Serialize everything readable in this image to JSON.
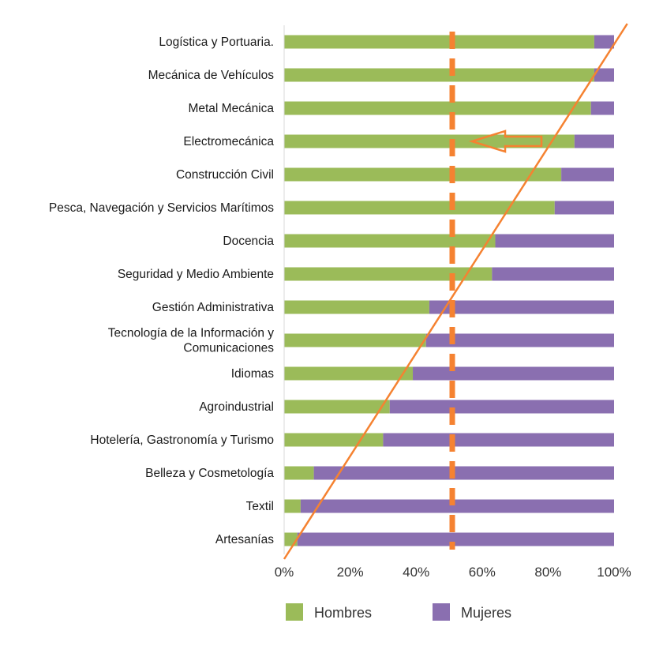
{
  "chart_data": {
    "type": "bar",
    "stacked": true,
    "orientation": "horizontal",
    "percent_scale": true,
    "categories": [
      "Logística y Portuaria.",
      "Mecánica de Vehículos",
      "Metal Mecánica",
      "Electromecánica",
      "Construcción Civil",
      "Pesca, Navegación y Servicios Marítimos",
      "Docencia",
      "Seguridad  y Medio Ambiente",
      "Gestión Administrativa",
      [
        "Tecnología de la Información y",
        "Comunicaciones"
      ],
      "Idiomas",
      "Agroindustrial",
      "Hotelería, Gastronomía y Turismo",
      "Belleza y Cosmetología",
      "Textil",
      "Artesanías"
    ],
    "series": [
      {
        "name": "Hombres",
        "color": "#9bbb59",
        "values": [
          94,
          94,
          93,
          88,
          84,
          82,
          64,
          63,
          44,
          43,
          39,
          32,
          30,
          9,
          5,
          4
        ]
      },
      {
        "name": "Mujeres",
        "color": "#8a6fb0",
        "values": [
          6,
          6,
          7,
          12,
          16,
          18,
          36,
          37,
          56,
          57,
          61,
          68,
          70,
          91,
          95,
          96
        ]
      }
    ],
    "xticks": [
      "0%",
      "20%",
      "40%",
      "60%",
      "80%",
      "100%"
    ],
    "xlim": [
      0,
      100
    ],
    "legend_position": "bottom",
    "annotations": {
      "reference_line_x": 50,
      "reference_line_style": "dashed",
      "reference_line_color": "#f58231",
      "diagonal_line_color": "#f58231",
      "arrow_direction": "left",
      "arrow_category": "Electromecánica",
      "arrow_color": "#f58231"
    }
  }
}
